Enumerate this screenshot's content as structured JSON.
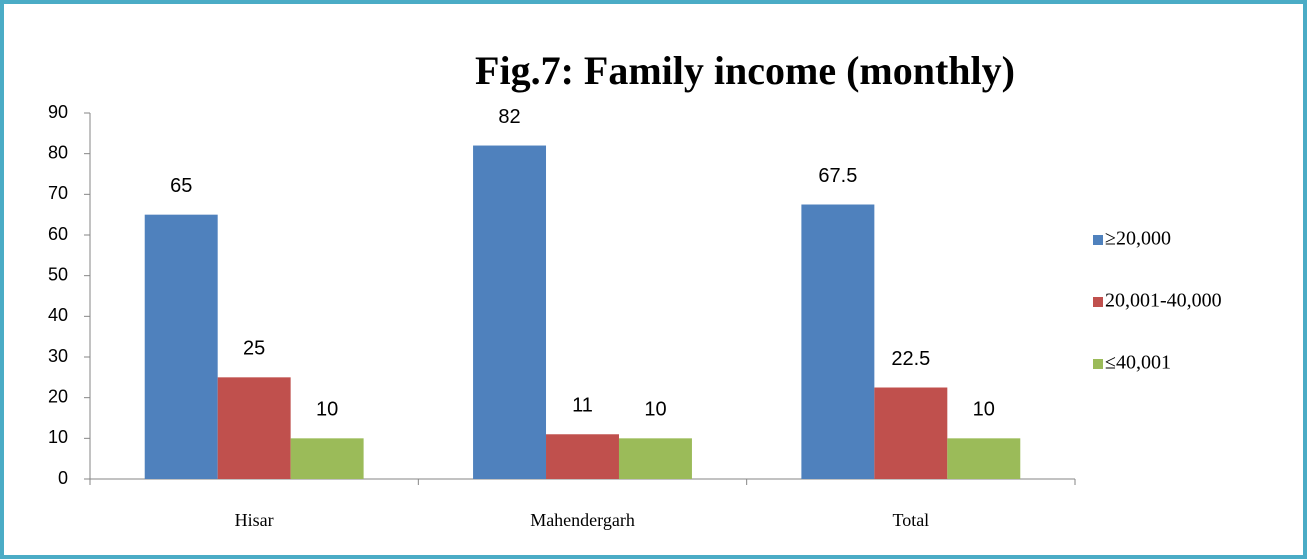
{
  "chart_data": {
    "type": "bar",
    "title": "Fig.7: Family income (monthly)",
    "categories": [
      "Hisar",
      "Mahendergarh",
      "Total"
    ],
    "series": [
      {
        "name": "≥20,000",
        "color": "#4f81bd",
        "values": [
          65,
          82,
          67.5
        ]
      },
      {
        "name": "20,001-40,000",
        "color": "#c0504d",
        "values": [
          25,
          11,
          22.5
        ]
      },
      {
        "name": "≤40,001",
        "color": "#9bbb59",
        "values": [
          10,
          10,
          10
        ]
      }
    ],
    "ylim": [
      0,
      90
    ],
    "yticks": [
      0,
      10,
      20,
      30,
      40,
      50,
      60,
      70,
      80,
      90
    ],
    "legend": "right"
  }
}
